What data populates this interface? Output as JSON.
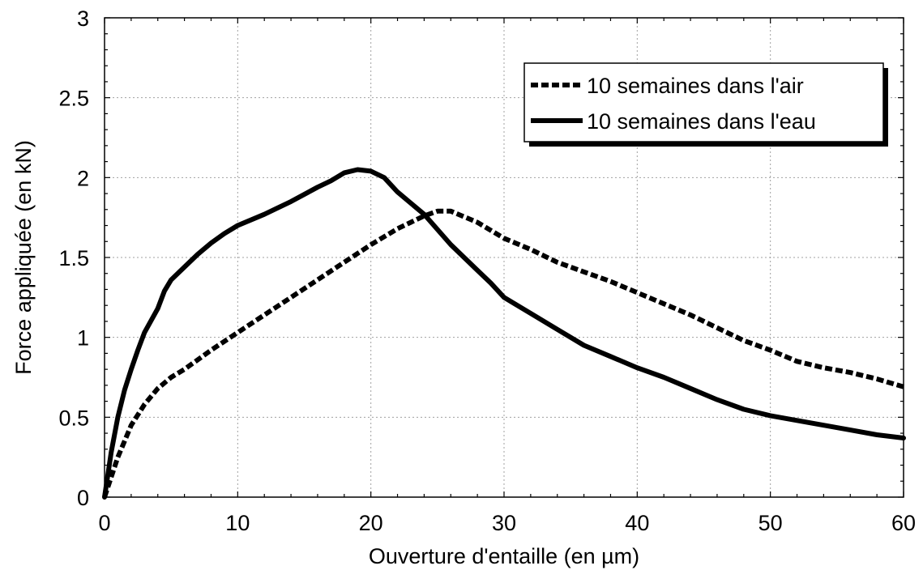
{
  "chart_data": {
    "type": "line",
    "title": "",
    "xlabel": "Ouverture d'entaille (en µm)",
    "ylabel": "Force appliquée (en kN)",
    "xlim": [
      0,
      60
    ],
    "ylim": [
      0,
      3
    ],
    "xticks": [
      0,
      10,
      20,
      30,
      40,
      50,
      60
    ],
    "yticks": [
      0,
      0.5,
      1,
      1.5,
      2,
      2.5,
      3
    ],
    "xtick_labels": [
      "0",
      "10",
      "20",
      "30",
      "40",
      "50",
      "60"
    ],
    "ytick_labels": [
      "0",
      "0.5",
      "1",
      "1.5",
      "2",
      "2.5",
      "3"
    ],
    "grid": true,
    "legend_position": "top-right",
    "series": [
      {
        "name": "10 semaines dans l'air",
        "style": "dashed",
        "color": "#000000",
        "x": [
          0,
          1,
          2,
          3,
          4,
          5,
          6,
          8,
          10,
          12,
          14,
          16,
          18,
          20,
          22,
          24,
          25,
          26,
          28,
          30,
          32,
          34,
          36,
          38,
          40,
          42,
          44,
          46,
          48,
          50,
          52,
          54,
          56,
          58,
          60
        ],
        "y": [
          0,
          0.25,
          0.45,
          0.58,
          0.68,
          0.75,
          0.8,
          0.92,
          1.03,
          1.14,
          1.25,
          1.36,
          1.47,
          1.58,
          1.68,
          1.76,
          1.79,
          1.79,
          1.72,
          1.62,
          1.55,
          1.47,
          1.41,
          1.35,
          1.28,
          1.21,
          1.14,
          1.06,
          0.98,
          0.92,
          0.85,
          0.81,
          0.78,
          0.74,
          0.69
        ]
      },
      {
        "name": "10 semaines dans l'eau",
        "style": "solid",
        "color": "#000000",
        "x": [
          0,
          0.5,
          1,
          1.5,
          2,
          2.5,
          3,
          4,
          4.5,
          5,
          6,
          7,
          8,
          9,
          10,
          12,
          14,
          16,
          17,
          18,
          19,
          20,
          21,
          22,
          24,
          26,
          28,
          29,
          30,
          32,
          34,
          36,
          38,
          40,
          42,
          44,
          46,
          48,
          50,
          52,
          54,
          56,
          58,
          60
        ],
        "y": [
          0,
          0.28,
          0.5,
          0.67,
          0.8,
          0.92,
          1.03,
          1.18,
          1.29,
          1.36,
          1.44,
          1.52,
          1.59,
          1.65,
          1.7,
          1.77,
          1.85,
          1.94,
          1.98,
          2.03,
          2.05,
          2.04,
          2.0,
          1.91,
          1.77,
          1.58,
          1.42,
          1.34,
          1.25,
          1.15,
          1.05,
          0.95,
          0.88,
          0.81,
          0.75,
          0.68,
          0.61,
          0.55,
          0.51,
          0.48,
          0.45,
          0.42,
          0.39,
          0.37
        ]
      }
    ]
  }
}
